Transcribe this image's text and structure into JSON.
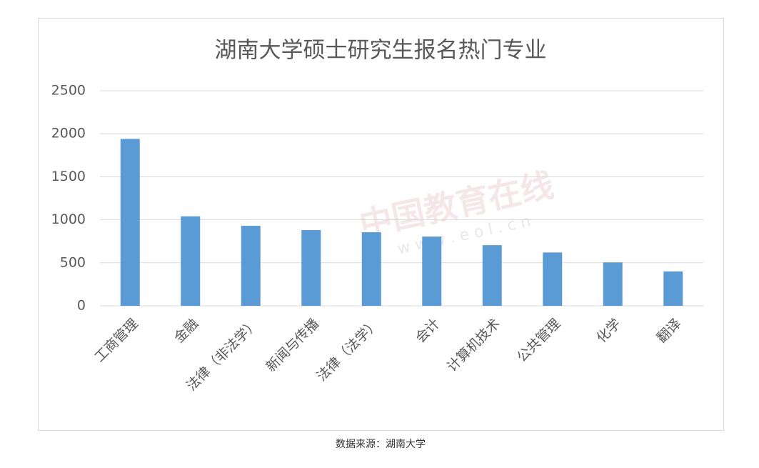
{
  "chart_data": {
    "type": "bar",
    "title": "湖南大学硕士研究生报名热门专业",
    "categories": [
      "工商管理",
      "金融",
      "法律（非法学）",
      "新闻与传播",
      "法律（法学）",
      "会计",
      "计算机技术",
      "公共管理",
      "化学",
      "翻译"
    ],
    "values": [
      1940,
      1040,
      930,
      880,
      855,
      805,
      705,
      620,
      505,
      400
    ],
    "color": "#5b9bd5",
    "ylim": [
      0,
      2500
    ],
    "yticks": [
      0,
      500,
      1000,
      1500,
      2000,
      2500
    ],
    "grid": true,
    "watermark": "中国教育在线",
    "watermark_url": "w w w . e o l . c n",
    "source": "数据来源：湖南大学"
  }
}
